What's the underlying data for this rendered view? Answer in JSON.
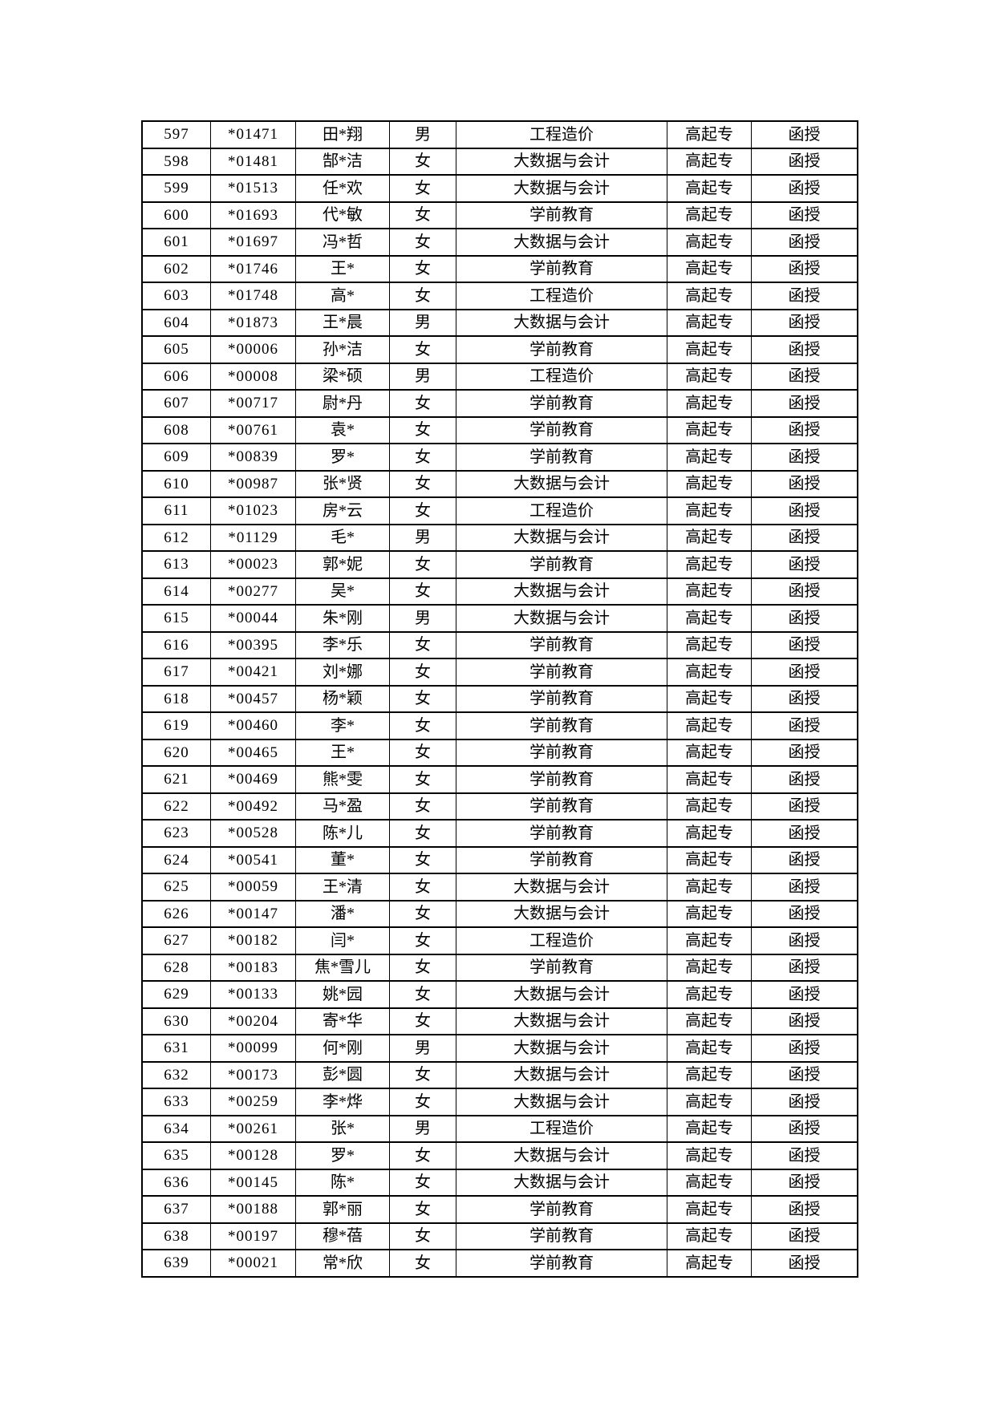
{
  "page": {
    "background_color": "#ffffff",
    "text_color": "#000000",
    "border_color": "#000000"
  },
  "table": {
    "rows": [
      [
        "597",
        "*01471",
        "田*翔",
        "男",
        "工程造价",
        "高起专",
        "函授"
      ],
      [
        "598",
        "*01481",
        "郜*洁",
        "女",
        "大数据与会计",
        "高起专",
        "函授"
      ],
      [
        "599",
        "*01513",
        "任*欢",
        "女",
        "大数据与会计",
        "高起专",
        "函授"
      ],
      [
        "600",
        "*01693",
        "代*敏",
        "女",
        "学前教育",
        "高起专",
        "函授"
      ],
      [
        "601",
        "*01697",
        "冯*哲",
        "女",
        "大数据与会计",
        "高起专",
        "函授"
      ],
      [
        "602",
        "*01746",
        "王*",
        "女",
        "学前教育",
        "高起专",
        "函授"
      ],
      [
        "603",
        "*01748",
        "高*",
        "女",
        "工程造价",
        "高起专",
        "函授"
      ],
      [
        "604",
        "*01873",
        "王*晨",
        "男",
        "大数据与会计",
        "高起专",
        "函授"
      ],
      [
        "605",
        "*00006",
        "孙*洁",
        "女",
        "学前教育",
        "高起专",
        "函授"
      ],
      [
        "606",
        "*00008",
        "梁*硕",
        "男",
        "工程造价",
        "高起专",
        "函授"
      ],
      [
        "607",
        "*00717",
        "尉*丹",
        "女",
        "学前教育",
        "高起专",
        "函授"
      ],
      [
        "608",
        "*00761",
        "袁*",
        "女",
        "学前教育",
        "高起专",
        "函授"
      ],
      [
        "609",
        "*00839",
        "罗*",
        "女",
        "学前教育",
        "高起专",
        "函授"
      ],
      [
        "610",
        "*00987",
        "张*贤",
        "女",
        "大数据与会计",
        "高起专",
        "函授"
      ],
      [
        "611",
        "*01023",
        "房*云",
        "女",
        "工程造价",
        "高起专",
        "函授"
      ],
      [
        "612",
        "*01129",
        "毛*",
        "男",
        "大数据与会计",
        "高起专",
        "函授"
      ],
      [
        "613",
        "*00023",
        "郭*妮",
        "女",
        "学前教育",
        "高起专",
        "函授"
      ],
      [
        "614",
        "*00277",
        "吴*",
        "女",
        "大数据与会计",
        "高起专",
        "函授"
      ],
      [
        "615",
        "*00044",
        "朱*刚",
        "男",
        "大数据与会计",
        "高起专",
        "函授"
      ],
      [
        "616",
        "*00395",
        "李*乐",
        "女",
        "学前教育",
        "高起专",
        "函授"
      ],
      [
        "617",
        "*00421",
        "刘*娜",
        "女",
        "学前教育",
        "高起专",
        "函授"
      ],
      [
        "618",
        "*00457",
        "杨*颖",
        "女",
        "学前教育",
        "高起专",
        "函授"
      ],
      [
        "619",
        "*00460",
        "李*",
        "女",
        "学前教育",
        "高起专",
        "函授"
      ],
      [
        "620",
        "*00465",
        "王*",
        "女",
        "学前教育",
        "高起专",
        "函授"
      ],
      [
        "621",
        "*00469",
        "熊*雯",
        "女",
        "学前教育",
        "高起专",
        "函授"
      ],
      [
        "622",
        "*00492",
        "马*盈",
        "女",
        "学前教育",
        "高起专",
        "函授"
      ],
      [
        "623",
        "*00528",
        "陈*儿",
        "女",
        "学前教育",
        "高起专",
        "函授"
      ],
      [
        "624",
        "*00541",
        "董*",
        "女",
        "学前教育",
        "高起专",
        "函授"
      ],
      [
        "625",
        "*00059",
        "王*清",
        "女",
        "大数据与会计",
        "高起专",
        "函授"
      ],
      [
        "626",
        "*00147",
        "潘*",
        "女",
        "大数据与会计",
        "高起专",
        "函授"
      ],
      [
        "627",
        "*00182",
        "闫*",
        "女",
        "工程造价",
        "高起专",
        "函授"
      ],
      [
        "628",
        "*00183",
        "焦*雪儿",
        "女",
        "学前教育",
        "高起专",
        "函授"
      ],
      [
        "629",
        "*00133",
        "姚*园",
        "女",
        "大数据与会计",
        "高起专",
        "函授"
      ],
      [
        "630",
        "*00204",
        "寄*华",
        "女",
        "大数据与会计",
        "高起专",
        "函授"
      ],
      [
        "631",
        "*00099",
        "何*刚",
        "男",
        "大数据与会计",
        "高起专",
        "函授"
      ],
      [
        "632",
        "*00173",
        "彭*圆",
        "女",
        "大数据与会计",
        "高起专",
        "函授"
      ],
      [
        "633",
        "*00259",
        "李*烨",
        "女",
        "大数据与会计",
        "高起专",
        "函授"
      ],
      [
        "634",
        "*00261",
        "张*",
        "男",
        "工程造价",
        "高起专",
        "函授"
      ],
      [
        "635",
        "*00128",
        "罗*",
        "女",
        "大数据与会计",
        "高起专",
        "函授"
      ],
      [
        "636",
        "*00145",
        "陈*",
        "女",
        "大数据与会计",
        "高起专",
        "函授"
      ],
      [
        "637",
        "*00188",
        "郭*丽",
        "女",
        "学前教育",
        "高起专",
        "函授"
      ],
      [
        "638",
        "*00197",
        "穆*蓓",
        "女",
        "学前教育",
        "高起专",
        "函授"
      ],
      [
        "639",
        "*00021",
        "常*欣",
        "女",
        "学前教育",
        "高起专",
        "函授"
      ]
    ]
  }
}
